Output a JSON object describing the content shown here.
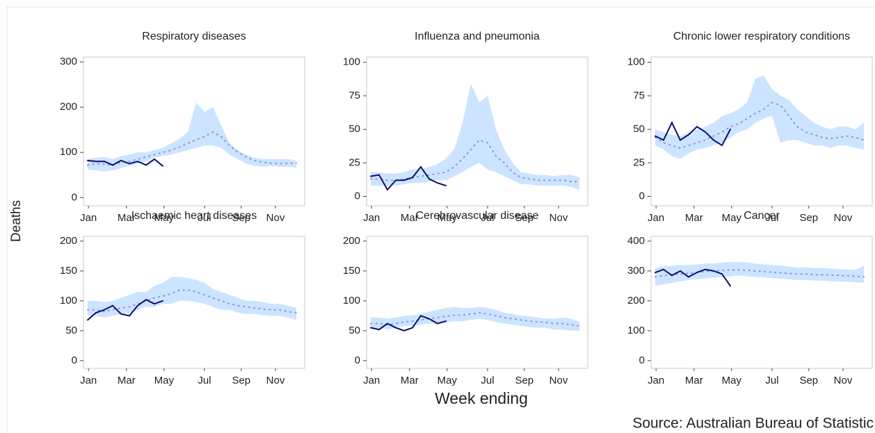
{
  "ylabel": "Deaths",
  "xlabel": "Week ending",
  "source": "Source: Australian Bureau of Statistic",
  "chart_data": [
    {
      "type": "line",
      "title": "Respiratory diseases",
      "x": [
        1,
        3,
        5,
        7,
        9,
        11,
        13,
        15,
        17,
        19,
        21,
        23,
        25,
        27,
        29,
        31,
        33,
        35,
        37,
        39,
        41,
        43,
        45,
        47,
        49,
        51
      ],
      "xlim": [
        0,
        53
      ],
      "xticks": [
        {
          "value": 1.2,
          "label": "Jan"
        },
        {
          "value": 10.3,
          "label": "Mar"
        },
        {
          "value": 19.3,
          "label": "May"
        },
        {
          "value": 29,
          "label": "Jul"
        },
        {
          "value": 37.8,
          "label": "Sep"
        },
        {
          "value": 46,
          "label": "Nov"
        }
      ],
      "ylim": [
        -18,
        311
      ],
      "yticks": [
        0,
        100,
        200,
        300
      ],
      "range": {
        "color": "#cce4ff",
        "low": [
          62,
          60,
          58,
          60,
          65,
          70,
          75,
          80,
          88,
          92,
          95,
          100,
          105,
          110,
          115,
          115,
          110,
          95,
          85,
          75,
          70,
          68,
          70,
          68,
          68,
          66
        ],
        "high": [
          85,
          88,
          90,
          85,
          92,
          95,
          100,
          100,
          105,
          110,
          120,
          130,
          145,
          210,
          190,
          200,
          160,
          120,
          105,
          95,
          88,
          85,
          85,
          85,
          85,
          82
        ]
      },
      "series": [
        {
          "color": "#8a96dc",
          "style": "dotted",
          "values": [
            72,
            75,
            74,
            72,
            78,
            80,
            85,
            90,
            95,
            100,
            105,
            112,
            120,
            128,
            135,
            145,
            135,
            115,
            100,
            90,
            82,
            78,
            76,
            75,
            76,
            76
          ]
        },
        {
          "color": "#0c0c6e",
          "style": "solid",
          "values": [
            82,
            80,
            80,
            72,
            82,
            75,
            80,
            72,
            85,
            70,
            null,
            null,
            null,
            null,
            null,
            null,
            null,
            null,
            null,
            null,
            null,
            null,
            null,
            null,
            null,
            null
          ]
        }
      ]
    },
    {
      "type": "line",
      "title": "Influenza and pneumonia",
      "x": [
        1,
        3,
        5,
        7,
        9,
        11,
        13,
        15,
        17,
        19,
        21,
        23,
        25,
        27,
        29,
        31,
        33,
        35,
        37,
        39,
        41,
        43,
        45,
        47,
        49,
        51
      ],
      "xlim": [
        0,
        53
      ],
      "xticks": [
        {
          "value": 1.2,
          "label": "Jan"
        },
        {
          "value": 10.3,
          "label": "Mar"
        },
        {
          "value": 19.3,
          "label": "May"
        },
        {
          "value": 29,
          "label": "Jul"
        },
        {
          "value": 37.8,
          "label": "Sep"
        },
        {
          "value": 46,
          "label": "Nov"
        }
      ],
      "ylim": [
        -7,
        104
      ],
      "yticks": [
        0,
        25,
        50,
        75,
        100
      ],
      "range": {
        "color": "#cce4ff",
        "low": [
          8,
          8,
          8,
          8,
          9,
          10,
          10,
          11,
          12,
          12,
          15,
          18,
          22,
          25,
          20,
          18,
          15,
          12,
          9,
          9,
          8,
          8,
          8,
          8,
          7,
          5
        ],
        "high": [
          18,
          18,
          17,
          17,
          18,
          20,
          20,
          22,
          24,
          28,
          35,
          55,
          84,
          70,
          75,
          50,
          35,
          25,
          18,
          17,
          16,
          16,
          15,
          16,
          16,
          14
        ]
      },
      "series": [
        {
          "color": "#8a96dc",
          "style": "dotted",
          "values": [
            13,
            13,
            12,
            12,
            13,
            14,
            15,
            16,
            17,
            18,
            22,
            28,
            35,
            42,
            40,
            30,
            25,
            18,
            14,
            13,
            12,
            12,
            12,
            12,
            11,
            11
          ]
        },
        {
          "color": "#0c0c6e",
          "style": "solid",
          "values": [
            15,
            16,
            5,
            12,
            12,
            14,
            22,
            13,
            10,
            8,
            null,
            null,
            null,
            null,
            null,
            null,
            null,
            null,
            null,
            null,
            null,
            null,
            null,
            null,
            null,
            null
          ]
        }
      ]
    },
    {
      "type": "line",
      "title": "Chronic lower respiratory conditions",
      "x": [
        1,
        3,
        5,
        7,
        9,
        11,
        13,
        15,
        17,
        19,
        21,
        23,
        25,
        27,
        29,
        31,
        33,
        35,
        37,
        39,
        41,
        43,
        45,
        47,
        49,
        51
      ],
      "xlim": [
        0,
        53
      ],
      "xticks": [
        {
          "value": 1.2,
          "label": "Jan"
        },
        {
          "value": 10.3,
          "label": "Mar"
        },
        {
          "value": 19.3,
          "label": "May"
        },
        {
          "value": 29,
          "label": "Jul"
        },
        {
          "value": 37.8,
          "label": "Sep"
        },
        {
          "value": 46,
          "label": "Nov"
        }
      ],
      "ylim": [
        -7,
        104
      ],
      "yticks": [
        0,
        25,
        50,
        75,
        100
      ],
      "range": {
        "color": "#cce4ff",
        "low": [
          38,
          35,
          30,
          28,
          32,
          35,
          36,
          38,
          40,
          44,
          48,
          50,
          55,
          58,
          60,
          40,
          42,
          42,
          40,
          38,
          38,
          36,
          38,
          38,
          36,
          35
        ],
        "high": [
          50,
          48,
          46,
          45,
          48,
          50,
          52,
          55,
          60,
          62,
          65,
          70,
          88,
          90,
          80,
          75,
          72,
          65,
          60,
          55,
          52,
          50,
          52,
          52,
          50,
          55
        ]
      },
      "series": [
        {
          "color": "#8a96dc",
          "style": "dotted",
          "values": [
            44,
            40,
            38,
            36,
            38,
            40,
            42,
            45,
            48,
            52,
            54,
            58,
            62,
            65,
            70,
            68,
            60,
            52,
            48,
            46,
            44,
            43,
            44,
            45,
            44,
            42
          ]
        },
        {
          "color": "#0c0c6e",
          "style": "solid",
          "values": [
            45,
            42,
            55,
            42,
            46,
            52,
            48,
            42,
            38,
            50,
            null,
            null,
            null,
            null,
            null,
            null,
            null,
            null,
            null,
            null,
            null,
            null,
            null,
            null,
            null,
            null
          ]
        }
      ]
    },
    {
      "type": "line",
      "title": "Ischaemic heart diseases",
      "x": [
        1,
        3,
        5,
        7,
        9,
        11,
        13,
        15,
        17,
        19,
        21,
        23,
        25,
        27,
        29,
        31,
        33,
        35,
        37,
        39,
        41,
        43,
        45,
        47,
        49,
        51
      ],
      "xlim": [
        0,
        53
      ],
      "xticks": [
        {
          "value": 1.2,
          "label": "Jan"
        },
        {
          "value": 10.3,
          "label": "Mar"
        },
        {
          "value": 19.3,
          "label": "May"
        },
        {
          "value": 29,
          "label": "Jul"
        },
        {
          "value": 37.8,
          "label": "Sep"
        },
        {
          "value": 46,
          "label": "Nov"
        }
      ],
      "ylim": [
        -13,
        208
      ],
      "yticks": [
        0,
        50,
        100,
        150,
        200
      ],
      "range": {
        "color": "#cce4ff",
        "low": [
          75,
          75,
          72,
          75,
          78,
          80,
          85,
          90,
          90,
          95,
          95,
          100,
          100,
          98,
          95,
          90,
          85,
          85,
          80,
          78,
          78,
          76,
          75,
          75,
          72,
          68
        ],
        "high": [
          100,
          100,
          98,
          100,
          105,
          110,
          115,
          115,
          125,
          130,
          140,
          140,
          138,
          135,
          130,
          120,
          115,
          110,
          105,
          100,
          100,
          98,
          95,
          95,
          92,
          88
        ]
      },
      "series": [
        {
          "color": "#8a96dc",
          "style": "dotted",
          "values": [
            85,
            85,
            82,
            85,
            88,
            90,
            95,
            100,
            105,
            108,
            112,
            118,
            118,
            115,
            110,
            105,
            100,
            95,
            92,
            90,
            88,
            86,
            85,
            85,
            82,
            80
          ]
        },
        {
          "color": "#0c0c6e",
          "style": "solid",
          "values": [
            68,
            80,
            85,
            92,
            78,
            75,
            92,
            102,
            95,
            100,
            null,
            null,
            null,
            null,
            null,
            null,
            null,
            null,
            null,
            null,
            null,
            null,
            null,
            null,
            null,
            null
          ]
        }
      ]
    },
    {
      "type": "line",
      "title": "Cerebrovascular disease",
      "x": [
        1,
        3,
        5,
        7,
        9,
        11,
        13,
        15,
        17,
        19,
        21,
        23,
        25,
        27,
        29,
        31,
        33,
        35,
        37,
        39,
        41,
        43,
        45,
        47,
        49,
        51
      ],
      "xlim": [
        0,
        53
      ],
      "xticks": [
        {
          "value": 1.2,
          "label": "Jan"
        },
        {
          "value": 10.3,
          "label": "Mar"
        },
        {
          "value": 19.3,
          "label": "May"
        },
        {
          "value": 29,
          "label": "Jul"
        },
        {
          "value": 37.8,
          "label": "Sep"
        },
        {
          "value": 46,
          "label": "Nov"
        }
      ],
      "ylim": [
        -13,
        208
      ],
      "yticks": [
        0,
        50,
        100,
        150,
        200
      ],
      "range": {
        "color": "#cce4ff",
        "low": [
          55,
          55,
          52,
          55,
          58,
          58,
          60,
          62,
          62,
          64,
          66,
          66,
          68,
          70,
          68,
          65,
          62,
          60,
          58,
          56,
          55,
          55,
          52,
          52,
          50,
          50
        ],
        "high": [
          72,
          72,
          70,
          72,
          75,
          76,
          78,
          82,
          85,
          88,
          90,
          88,
          88,
          90,
          88,
          85,
          80,
          78,
          75,
          74,
          72,
          70,
          70,
          72,
          70,
          65
        ]
      },
      "series": [
        {
          "color": "#8a96dc",
          "style": "dotted",
          "values": [
            62,
            62,
            60,
            62,
            65,
            66,
            68,
            70,
            72,
            74,
            76,
            76,
            78,
            80,
            78,
            75,
            72,
            70,
            68,
            66,
            65,
            64,
            62,
            62,
            60,
            58
          ]
        },
        {
          "color": "#0c0c6e",
          "style": "solid",
          "values": [
            55,
            52,
            62,
            55,
            50,
            55,
            75,
            70,
            62,
            66,
            null,
            null,
            null,
            null,
            null,
            null,
            null,
            null,
            null,
            null,
            null,
            null,
            null,
            null,
            null,
            null
          ]
        }
      ]
    },
    {
      "type": "line",
      "title": "Cancer",
      "x": [
        1,
        3,
        5,
        7,
        9,
        11,
        13,
        15,
        17,
        19,
        21,
        23,
        25,
        27,
        29,
        31,
        33,
        35,
        37,
        39,
        41,
        43,
        45,
        47,
        49,
        51
      ],
      "xlim": [
        0,
        53
      ],
      "xticks": [
        {
          "value": 1.2,
          "label": "Jan"
        },
        {
          "value": 10.3,
          "label": "Mar"
        },
        {
          "value": 19.3,
          "label": "May"
        },
        {
          "value": 29,
          "label": "Jul"
        },
        {
          "value": 37.8,
          "label": "Sep"
        },
        {
          "value": 46,
          "label": "Nov"
        }
      ],
      "ylim": [
        -26,
        416
      ],
      "yticks": [
        0,
        100,
        200,
        300,
        400
      ],
      "range": {
        "color": "#cce4ff",
        "low": [
          250,
          255,
          260,
          265,
          270,
          272,
          275,
          278,
          280,
          282,
          285,
          282,
          280,
          278,
          276,
          274,
          272,
          270,
          270,
          268,
          268,
          266,
          265,
          264,
          262,
          260
        ],
        "high": [
          310,
          315,
          318,
          320,
          320,
          322,
          325,
          325,
          328,
          330,
          330,
          328,
          325,
          322,
          320,
          318,
          315,
          312,
          312,
          310,
          310,
          308,
          306,
          305,
          304,
          318
        ]
      },
      "series": [
        {
          "color": "#8a96dc",
          "style": "dotted",
          "values": [
            280,
            285,
            288,
            290,
            292,
            295,
            298,
            300,
            302,
            303,
            304,
            302,
            300,
            298,
            296,
            294,
            292,
            290,
            290,
            288,
            287,
            286,
            285,
            284,
            282,
            280
          ]
        },
        {
          "color": "#0c0c6e",
          "style": "solid",
          "values": [
            295,
            305,
            285,
            300,
            280,
            295,
            305,
            300,
            290,
            250,
            null,
            null,
            null,
            null,
            null,
            null,
            null,
            null,
            null,
            null,
            null,
            null,
            null,
            null,
            null,
            null
          ]
        }
      ]
    }
  ]
}
